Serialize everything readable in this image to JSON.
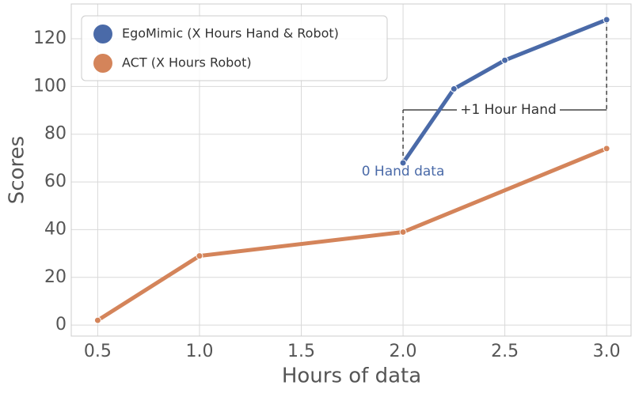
{
  "chart_data": {
    "type": "line",
    "xlabel": "Hours of data",
    "ylabel": "Scores",
    "xlim": [
      0.37,
      3.12
    ],
    "ylim": [
      -4.6,
      134.6
    ],
    "xticks": [
      {
        "value": 0.5,
        "label": "0.5"
      },
      {
        "value": 1,
        "label": "1.0"
      },
      {
        "value": 1.5,
        "label": "1.5"
      },
      {
        "value": 2,
        "label": "2.0"
      },
      {
        "value": 2.5,
        "label": "2.5"
      },
      {
        "value": 3,
        "label": "3.0"
      }
    ],
    "yticks": [
      0,
      20,
      40,
      60,
      80,
      100,
      120
    ],
    "grid": true,
    "legend": "upper left",
    "series": [
      {
        "name": "EgoMimic (X Hours Hand & Robot)",
        "color": "#4a6aa8",
        "x": [
          2.0,
          2.25,
          2.5,
          3.0
        ],
        "values": [
          68,
          99,
          111,
          128
        ]
      },
      {
        "name": "ACT (X Hours Robot)",
        "color": "#d4845a",
        "x": [
          0.5,
          1.0,
          2.0,
          3.0
        ],
        "values": [
          2,
          29,
          39,
          74
        ]
      }
    ],
    "annotations": [
      "+1 Hour Hand",
      "0 Hand data"
    ]
  }
}
